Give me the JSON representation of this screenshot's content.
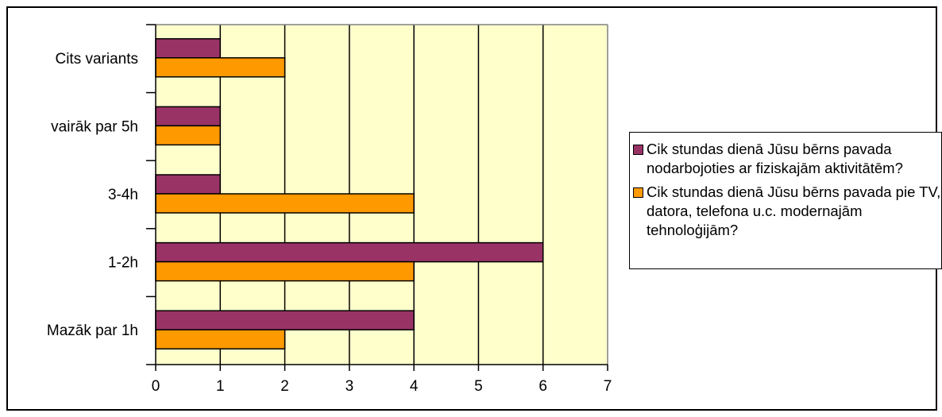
{
  "chart_data": {
    "type": "bar",
    "orientation": "horizontal",
    "categories": [
      "Cits variants",
      "vairāk par 5h",
      "3-4h",
      "1-2h",
      "Mazāk par 1h"
    ],
    "series": [
      {
        "name": "Cik stundas dienā Jūsu bērns pavada nodarbojoties ar fiziskajām aktivitātēm?",
        "color": "#993366",
        "values": [
          1,
          1,
          1,
          6,
          4
        ]
      },
      {
        "name": "Cik stundas dienā Jūsu bērns pavada pie TV, datora, telefona u.c. modernajām tehnoloģijām?",
        "color": "#FF9900",
        "values": [
          2,
          1,
          4,
          4,
          2
        ]
      }
    ],
    "xlim": [
      0,
      7
    ],
    "xticks": [
      "0",
      "1",
      "2",
      "3",
      "4",
      "5",
      "6",
      "7"
    ],
    "grid": true,
    "plot_background": "#FFFFCC",
    "legend_position": "right"
  }
}
